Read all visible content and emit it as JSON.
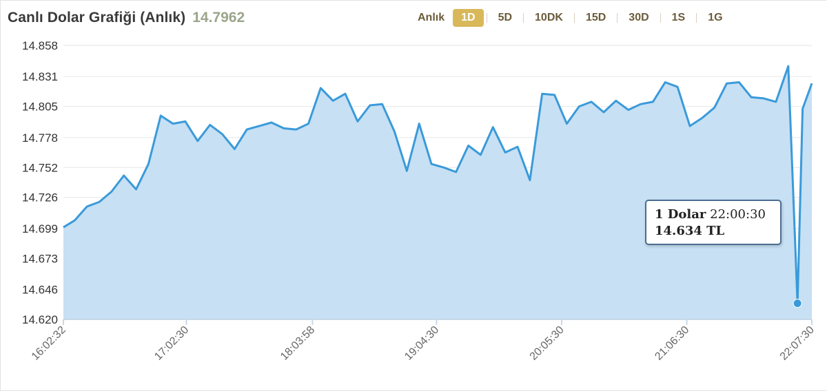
{
  "header": {
    "title": "Canlı Dolar Grafiği (Anlık)",
    "price": "14.7962"
  },
  "ranges": [
    {
      "label": "Anlık",
      "active": false
    },
    {
      "label": "1D",
      "active": true
    },
    {
      "label": "5D",
      "active": false
    },
    {
      "label": "10DK",
      "active": false
    },
    {
      "label": "15D",
      "active": false
    },
    {
      "label": "30D",
      "active": false
    },
    {
      "label": "1S",
      "active": false
    },
    {
      "label": "1G",
      "active": false
    }
  ],
  "tooltip": {
    "label": "1 Dolar",
    "time": "22:00:30",
    "value": "14.634 TL"
  },
  "colors": {
    "line": "#3a9ad9",
    "area": "#c7e0f4",
    "accent": "#d9b85a"
  },
  "chart_data": {
    "type": "area",
    "title": "Canlı Dolar Grafiği (Anlık)",
    "ylim": [
      14.62,
      14.858
    ],
    "yticks": [
      "14.620",
      "14.646",
      "14.673",
      "14.699",
      "14.726",
      "14.752",
      "14.778",
      "14.805",
      "14.831",
      "14.858"
    ],
    "xlim": [
      "16:02:32",
      "22:07:30"
    ],
    "xticks": [
      "16:02:32",
      "17:02:30",
      "18:03:58",
      "19:04:30",
      "20:05:30",
      "21:06:30",
      "22:07:30"
    ],
    "grid": true,
    "x": [
      "16:02:32",
      "16:08",
      "16:14",
      "16:20",
      "16:26",
      "16:32",
      "16:38",
      "16:44",
      "16:50",
      "16:56",
      "17:02",
      "17:08",
      "17:14",
      "17:20",
      "17:26",
      "17:32",
      "17:38",
      "17:44",
      "17:50",
      "17:56",
      "18:02",
      "18:08",
      "18:14",
      "18:20",
      "18:26",
      "18:32",
      "18:38",
      "18:44",
      "18:50",
      "18:56",
      "19:02",
      "19:08",
      "19:14",
      "19:20",
      "19:26",
      "19:32",
      "19:38",
      "19:44",
      "19:50",
      "19:56",
      "20:02",
      "20:08",
      "20:14",
      "20:20",
      "20:26",
      "20:32",
      "20:38",
      "20:44",
      "20:50",
      "20:56",
      "21:02",
      "21:08",
      "21:14",
      "21:20",
      "21:26",
      "21:32",
      "21:38",
      "21:44",
      "21:50",
      "21:56",
      "22:00:30",
      "22:03",
      "22:07:30"
    ],
    "values": [
      14.7,
      14.706,
      14.718,
      14.722,
      14.731,
      14.745,
      14.733,
      14.755,
      14.797,
      14.79,
      14.792,
      14.775,
      14.789,
      14.781,
      14.768,
      14.785,
      14.788,
      14.791,
      14.786,
      14.785,
      14.79,
      14.821,
      14.81,
      14.816,
      14.792,
      14.806,
      14.807,
      14.783,
      14.749,
      14.79,
      14.755,
      14.752,
      14.748,
      14.771,
      14.763,
      14.787,
      14.765,
      14.77,
      14.741,
      14.816,
      14.815,
      14.79,
      14.805,
      14.809,
      14.8,
      14.81,
      14.802,
      14.807,
      14.809,
      14.826,
      14.822,
      14.788,
      14.795,
      14.804,
      14.825,
      14.826,
      14.813,
      14.812,
      14.809,
      14.84,
      14.634,
      14.803,
      14.825
    ],
    "highlight": {
      "x": "22:00:30",
      "y": 14.634
    }
  }
}
